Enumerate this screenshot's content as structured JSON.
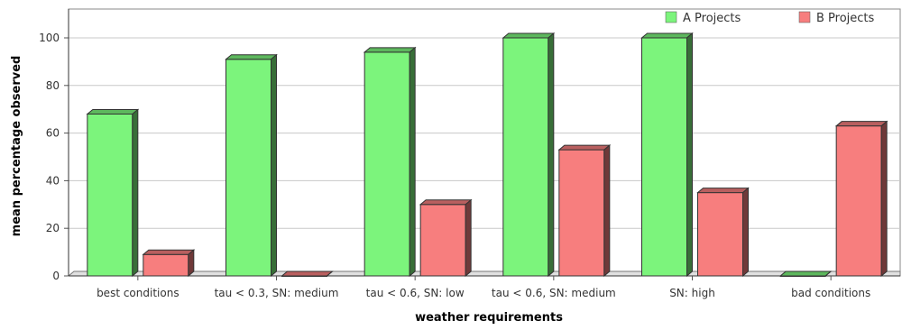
{
  "chart_data": {
    "type": "bar",
    "title": "",
    "xlabel": "weather requirements",
    "ylabel": "mean percentage observed",
    "categories": [
      "best conditions",
      "tau < 0.3, SN: medium",
      "tau < 0.6, SN: low",
      "tau < 0.6, SN: medium",
      "SN: high",
      "bad conditions"
    ],
    "series": [
      {
        "name": "A Projects",
        "color": "#7cf47c",
        "values": [
          68,
          91,
          94,
          100,
          100,
          0
        ]
      },
      {
        "name": "B Projects",
        "color": "#f77e7e",
        "values": [
          9,
          0,
          30,
          53,
          35,
          63
        ]
      }
    ],
    "yticks": [
      0,
      20,
      40,
      60,
      80,
      100
    ],
    "ylim": [
      0,
      100
    ],
    "grid": true,
    "legend_position": "top-right",
    "style": "3d-bar"
  }
}
